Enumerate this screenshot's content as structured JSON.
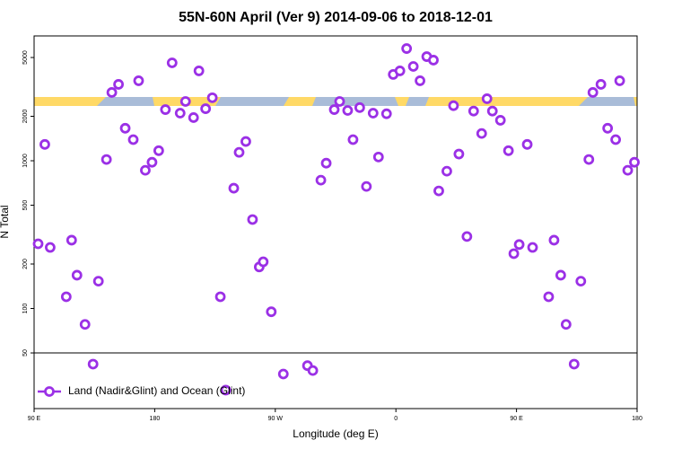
{
  "chart_data": {
    "type": "scatter",
    "title": "55N-60N April (Ver 9)   2014-09-06 to 2018-12-01",
    "xlabel": "Longitude (deg E)",
    "ylabel": "N Total",
    "log_y": true,
    "legend": "lower left",
    "reference_line": 50,
    "xlim": [
      90,
      540
    ],
    "xticks": [
      {
        "value": 90,
        "label": "90 E"
      },
      180,
      {
        "value": 270,
        "label": "90 W"
      },
      {
        "value": 360,
        "label": "0"
      },
      {
        "value": 450,
        "label": "90 E"
      },
      {
        "value": 540,
        "label": "180"
      }
    ],
    "ylim": [
      21,
      7000
    ],
    "yticks": [
      50,
      100,
      200,
      500,
      1000,
      2000,
      5000
    ],
    "series": [
      {
        "name": "Land (Nadir&Glint) and Ocean (Glint)",
        "color": "#9b30e6",
        "x": [
          93,
          98,
          102,
          114,
          118,
          122,
          128,
          134,
          138,
          144,
          148,
          153,
          158,
          164,
          168,
          173,
          178,
          183,
          188,
          193,
          199,
          203,
          209,
          213,
          218,
          223,
          229,
          233,
          239,
          243,
          248,
          253,
          258,
          261,
          267,
          276,
          294,
          298,
          304,
          308,
          314,
          318,
          324,
          328,
          333,
          338,
          343,
          347,
          353,
          358,
          363,
          368,
          373,
          378,
          383,
          388,
          392,
          398,
          403,
          407,
          413,
          418,
          424,
          428,
          432,
          438,
          444,
          448,
          452,
          458,
          462,
          474,
          478,
          483,
          487,
          493,
          498,
          504,
          507,
          513,
          518,
          524,
          527,
          533,
          538
        ],
        "values": [
          274,
          1290,
          259,
          120,
          290,
          168,
          78,
          42,
          153,
          1020,
          2900,
          3290,
          1660,
          1390,
          3480,
          862,
          977,
          1170,
          2220,
          4600,
          2100,
          2520,
          1960,
          4060,
          2250,
          2670,
          120,
          28,
          652,
          1140,
          1350,
          400,
          191,
          207,
          95,
          36,
          41,
          38,
          739,
          963,
          2220,
          2520,
          2190,
          1390,
          2290,
          670,
          2100,
          1060,
          2080,
          3840,
          4060,
          5750,
          4350,
          3480,
          5070,
          4800,
          625,
          850,
          2360,
          1110,
          307,
          2170,
          1530,
          2630,
          2170,
          1880,
          1170,
          235,
          271,
          1290,
          259,
          120,
          290,
          168,
          78,
          42,
          153,
          1020,
          2900,
          3290,
          1660,
          1390,
          3480,
          862,
          977
        ]
      }
    ]
  }
}
